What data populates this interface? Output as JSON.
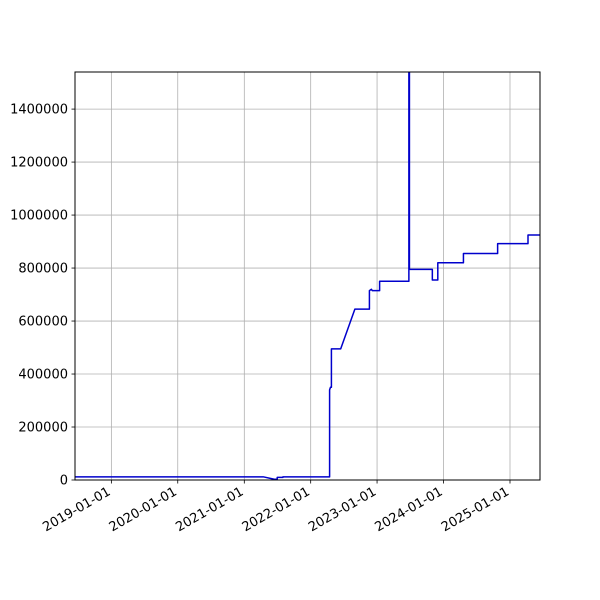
{
  "chart_data": {
    "type": "line",
    "title": "",
    "xlabel": "",
    "ylabel": "",
    "x_axis_type": "date",
    "xlim": [
      "2018-06-15",
      "2025-06-15"
    ],
    "ylim": [
      0,
      1540000
    ],
    "grid": true,
    "line_color": "#0000cc",
    "x_ticks": [
      "2019-01-01",
      "2020-01-01",
      "2021-01-01",
      "2022-01-01",
      "2023-01-01",
      "2024-01-01",
      "2025-01-01"
    ],
    "y_ticks": [
      0,
      200000,
      400000,
      600000,
      800000,
      1000000,
      1200000,
      1400000
    ],
    "x_tick_labels": [
      "2019-01-01",
      "2020-01-01",
      "2021-01-01",
      "2022-01-01",
      "2023-01-01",
      "2024-01-01",
      "2025-01-01"
    ],
    "y_tick_labels": [
      "0",
      "200000",
      "400000",
      "600000",
      "800000",
      "1000000",
      "1200000",
      "1400000"
    ],
    "series": [
      {
        "x": [
          "2018-06-15",
          "2021-04-15",
          "2021-06-15",
          "2021-07-01",
          "2021-07-01",
          "2021-08-01",
          "2021-08-01",
          "2022-04-15",
          "2022-04-15",
          "2022-04-20",
          "2022-04-25",
          "2022-04-25",
          "2022-06-15",
          "2022-09-01",
          "2022-11-20",
          "2022-11-20",
          "2022-12-01",
          "2022-12-05",
          "2023-01-15",
          "2023-01-15",
          "2023-06-25",
          "2023-06-25",
          "2023-06-28",
          "2023-06-28",
          "2023-11-01",
          "2023-11-01",
          "2023-12-01",
          "2023-12-01",
          "2024-04-20",
          "2024-04-20",
          "2024-10-25",
          "2024-10-25",
          "2025-04-10",
          "2025-04-10",
          "2025-06-15"
        ],
        "y": [
          12000,
          12000,
          3000,
          3000,
          10000,
          10000,
          12000,
          12000,
          340000,
          350000,
          350000,
          495000,
          495000,
          645000,
          645000,
          715000,
          720000,
          715000,
          715000,
          750000,
          750000,
          1540000,
          1540000,
          795000,
          795000,
          755000,
          755000,
          820000,
          820000,
          855000,
          855000,
          892000,
          892000,
          925000,
          925000
        ]
      }
    ]
  }
}
